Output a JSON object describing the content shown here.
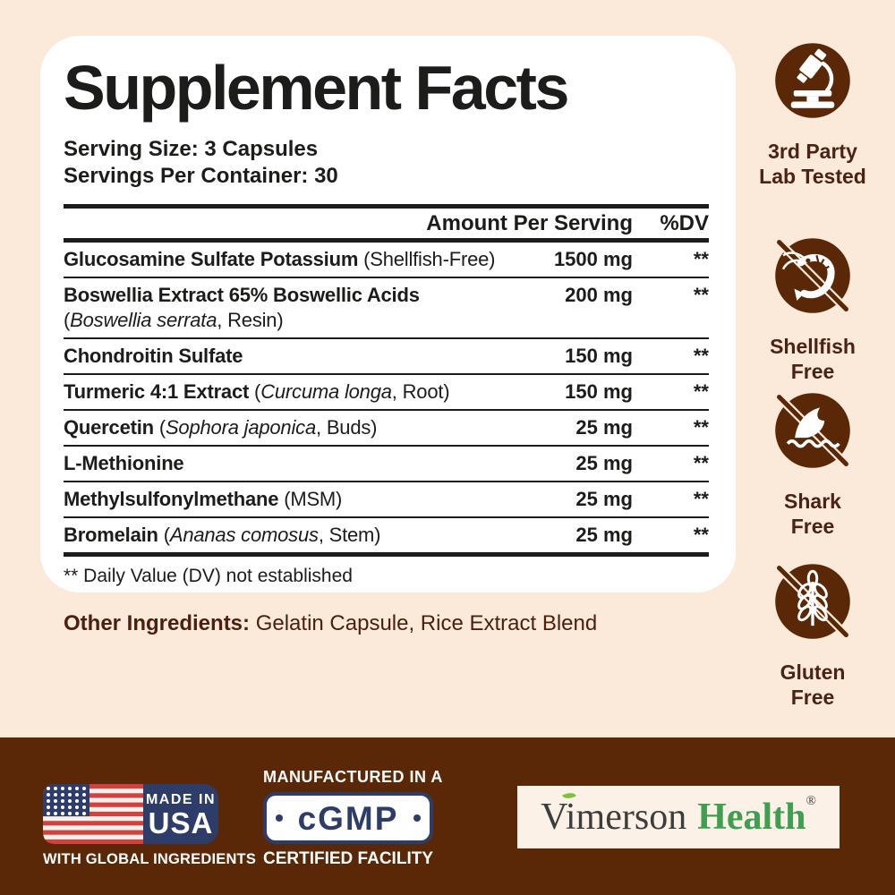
{
  "colors": {
    "background": "#fbe9da",
    "panel": "#ffffff",
    "ink": "#1c1c1a",
    "brown": "#5a2806",
    "badge_text": "#4a2315",
    "ingredients_text": "#4c2010",
    "navy": "#2e3c69",
    "flag_red": "#d24040",
    "flag_white": "#f3f1ec",
    "brand_green": "#3f9e4f",
    "leaf_green": "#7cc23f",
    "logo_box": "#fbf1e7",
    "logo_gray": "#3d3d3d"
  },
  "panel": {
    "title": "Supplement Facts",
    "serving_size": "Serving Size: 3 Capsules",
    "servings_per_container": "Servings Per Container: 30",
    "table": {
      "amount_header": "Amount Per Serving",
      "dv_header": "%DV",
      "rows": [
        {
          "lines": [
            [
              {
                "t": "Glucosamine Sulfate Potassium",
                "s": "b"
              },
              {
                "t": " (Shellfish-Free)",
                "s": "r"
              }
            ]
          ],
          "amount": "1500 mg",
          "dv": "**"
        },
        {
          "lines": [
            [
              {
                "t": "Boswellia Extract 65% Boswellic Acids",
                "s": "b"
              }
            ],
            [
              {
                "t": "(",
                "s": "r"
              },
              {
                "t": "Boswellia serrata",
                "s": "i"
              },
              {
                "t": ", Resin)",
                "s": "r"
              }
            ]
          ],
          "amount": "200 mg",
          "dv": "**"
        },
        {
          "lines": [
            [
              {
                "t": "Chondroitin Sulfate",
                "s": "b"
              }
            ]
          ],
          "amount": "150 mg",
          "dv": "**"
        },
        {
          "lines": [
            [
              {
                "t": "Turmeric 4:1 Extract",
                "s": "b"
              },
              {
                "t": " (",
                "s": "r"
              },
              {
                "t": "Curcuma longa",
                "s": "i"
              },
              {
                "t": ", Root)",
                "s": "r"
              }
            ]
          ],
          "amount": "150 mg",
          "dv": "**"
        },
        {
          "lines": [
            [
              {
                "t": "Quercetin",
                "s": "b"
              },
              {
                "t": " (",
                "s": "r"
              },
              {
                "t": "Sophora japonica",
                "s": "i"
              },
              {
                "t": ", Buds)",
                "s": "r"
              }
            ]
          ],
          "amount": "25 mg",
          "dv": "**"
        },
        {
          "lines": [
            [
              {
                "t": "L-Methionine",
                "s": "b"
              }
            ]
          ],
          "amount": "25 mg",
          "dv": "**"
        },
        {
          "lines": [
            [
              {
                "t": "Methylsulfonylmethane",
                "s": "b"
              },
              {
                "t": " (MSM)",
                "s": "r"
              }
            ]
          ],
          "amount": "25 mg",
          "dv": "**"
        },
        {
          "lines": [
            [
              {
                "t": "Bromelain",
                "s": "b"
              },
              {
                "t": " (",
                "s": "r"
              },
              {
                "t": "Ananas comosus",
                "s": "i"
              },
              {
                "t": ", Stem)",
                "s": "r"
              }
            ]
          ],
          "amount": "25 mg",
          "dv": "**"
        }
      ],
      "footnote": "** Daily Value (DV) not established"
    }
  },
  "other_ingredients": {
    "label": "Other Ingredients:",
    "value": " Gelatin Capsule, Rice Extract Blend"
  },
  "badges": [
    {
      "icon": "microscope-icon",
      "line1": "3rd Party",
      "line2": "Lab Tested",
      "slash": false
    },
    {
      "icon": "shrimp-icon",
      "line1": "Shellfish",
      "line2": "Free",
      "slash": true
    },
    {
      "icon": "shark-fin-icon",
      "line1": "Shark",
      "line2": "Free",
      "slash": true
    },
    {
      "icon": "wheat-icon",
      "line1": "Gluten",
      "line2": "Free",
      "slash": true
    }
  ],
  "footer": {
    "usa": {
      "line1": "MADE IN",
      "line2": "USA",
      "caption": "WITH GLOBAL INGREDIENTS"
    },
    "cgmp": {
      "top": "MANUFACTURED IN A",
      "label": "cGMP",
      "bottom": "CERTIFIED FACILITY"
    },
    "logo": {
      "brand_primary": "Vimerson",
      "brand_secondary": "Health",
      "registered": "®"
    }
  }
}
